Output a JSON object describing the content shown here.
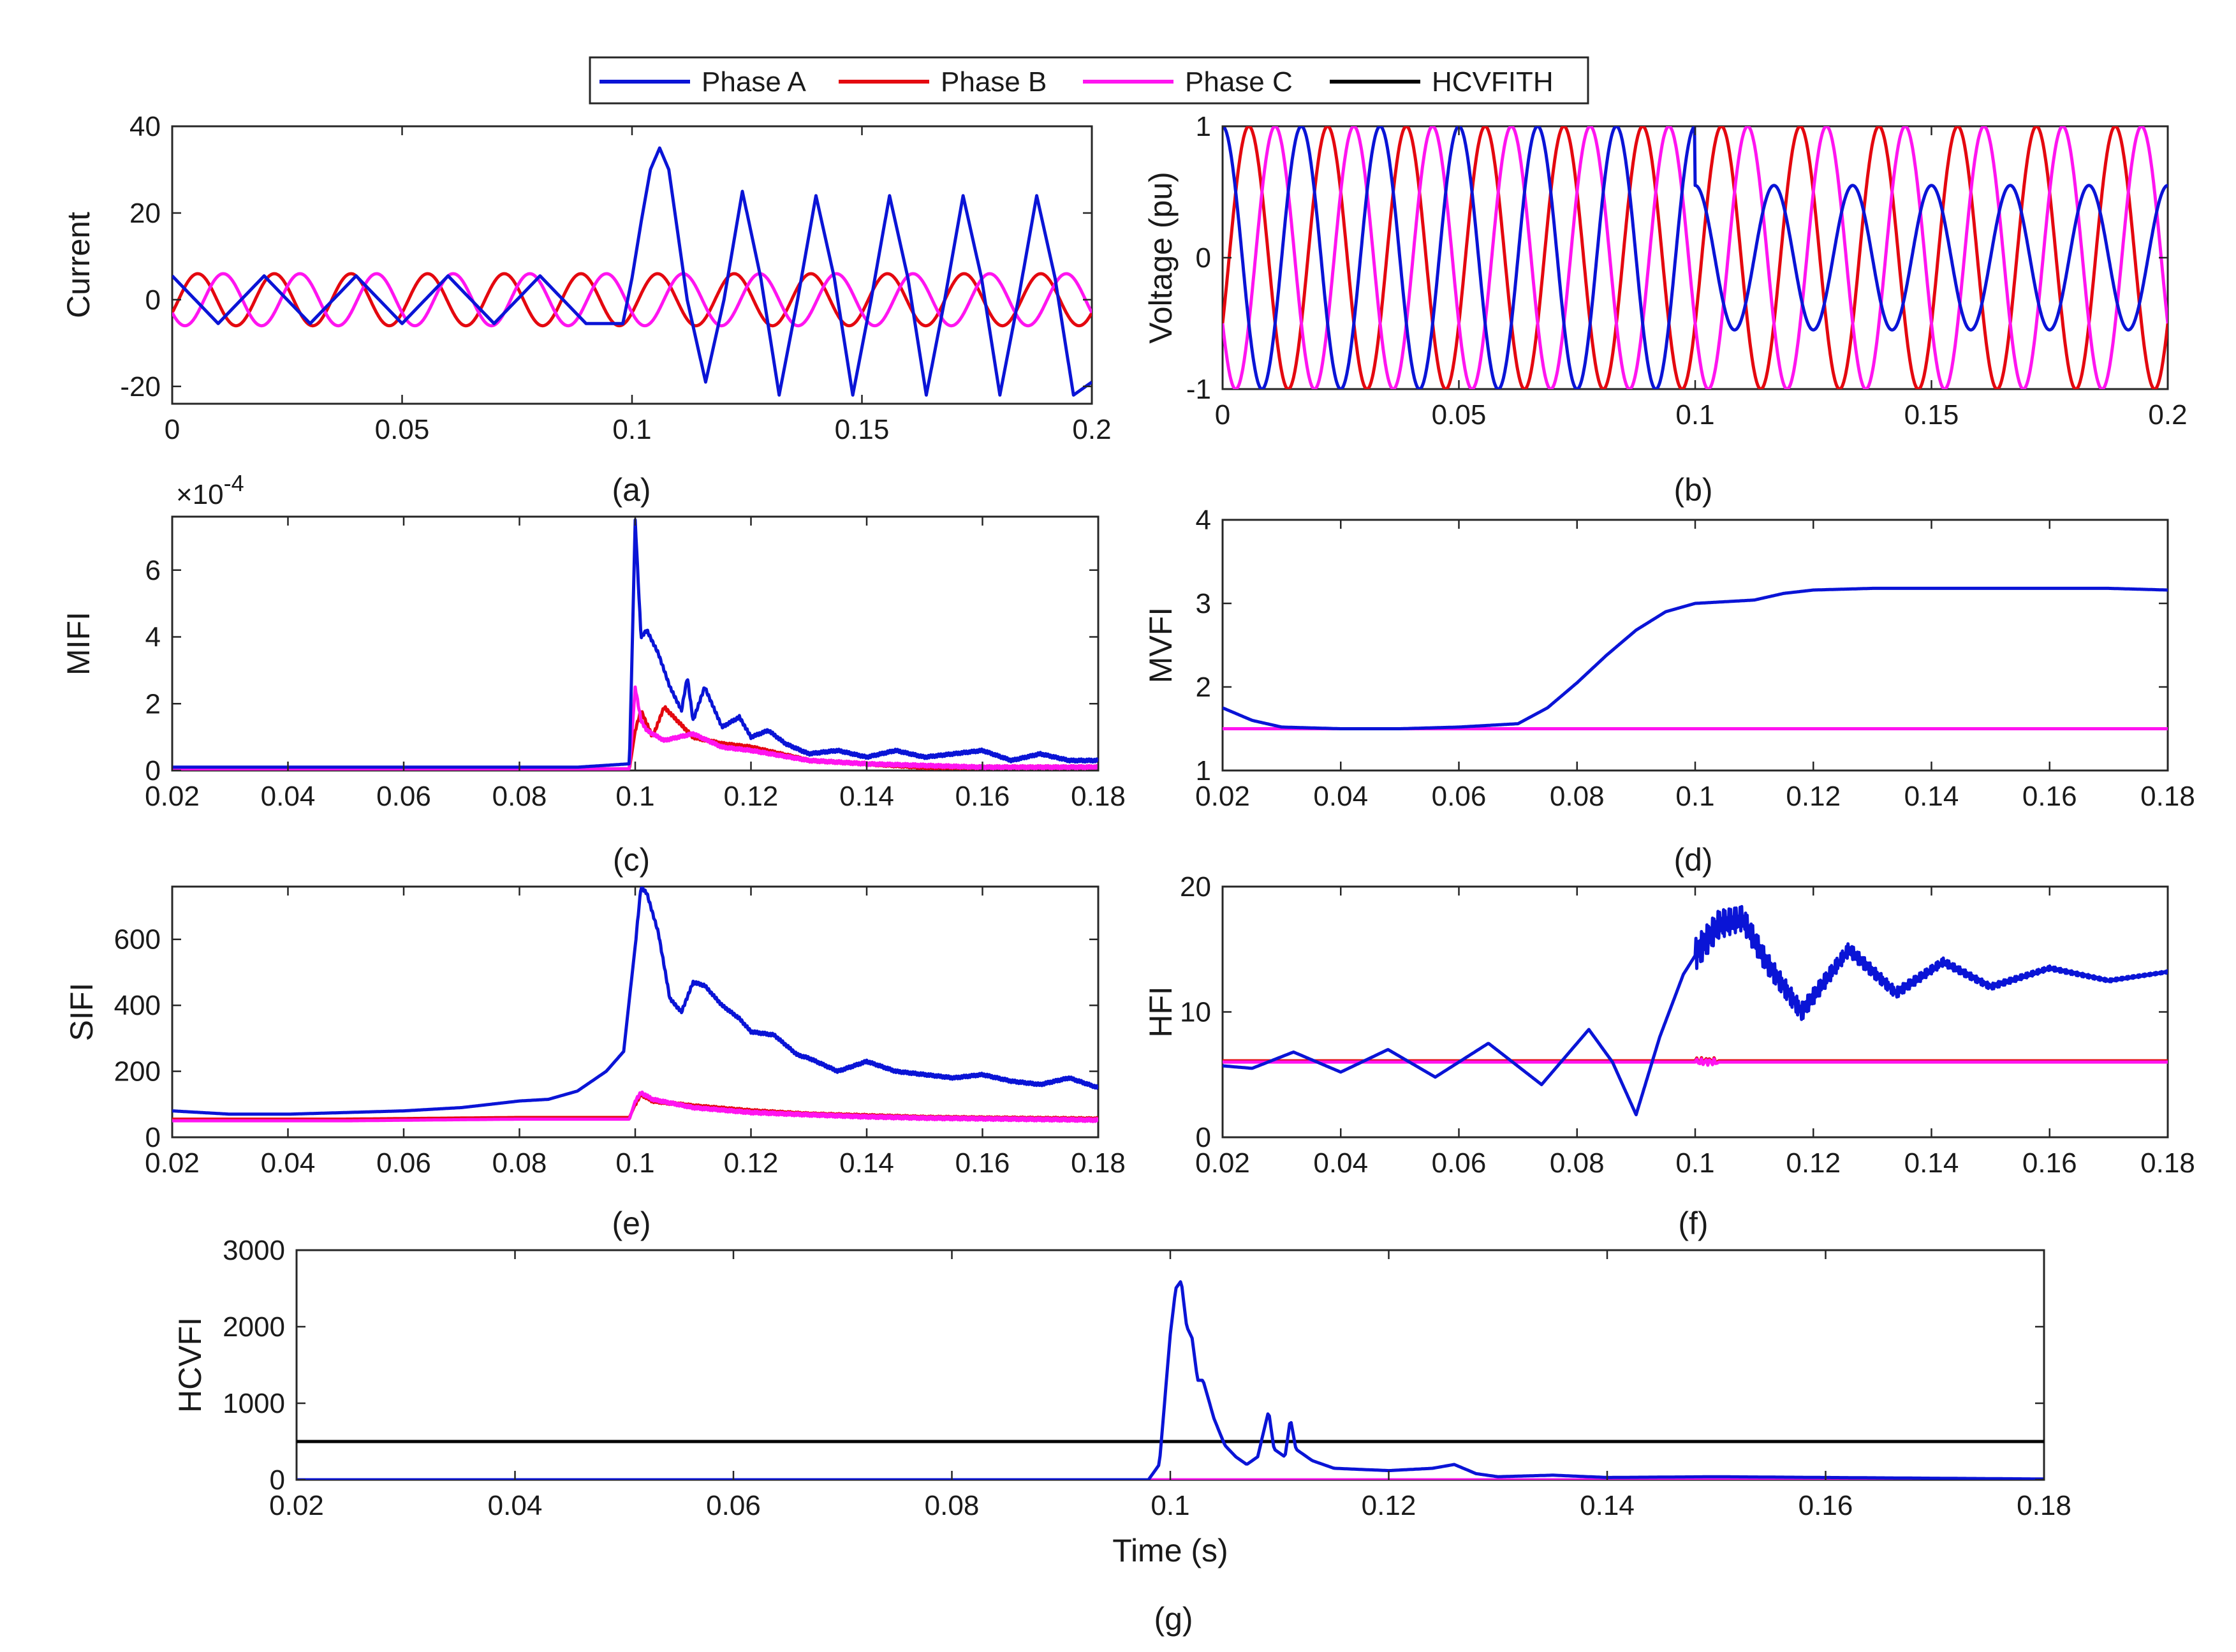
{
  "legend": {
    "entries": [
      {
        "name": "Phase A",
        "color": "#0a14d6"
      },
      {
        "name": "Phase B",
        "color": "#e4080f"
      },
      {
        "name": "Phase C",
        "color": "#ff14f0"
      },
      {
        "name": "HCVFITH",
        "color": "#000000"
      }
    ]
  },
  "chart_data": [
    {
      "id": "a",
      "type": "line",
      "caption": "(a)",
      "xlabel": "",
      "ylabel": "Current",
      "exponent": "",
      "xlim": [
        0,
        0.2
      ],
      "ylim": [
        -24,
        40
      ],
      "xticks": [
        0,
        0.05,
        0.1,
        0.15,
        0.2
      ],
      "xtick_labels": [
        "0",
        "0.05",
        "0.1",
        "0.15",
        "0.2"
      ],
      "yticks": [
        -20,
        0,
        20,
        40
      ],
      "ytick_labels": [
        "-20",
        "0",
        "20",
        "40"
      ],
      "series": [
        {
          "name": "Phase A",
          "x": [
            0,
            0.005,
            0.01,
            0.015,
            0.02,
            0.03,
            0.04,
            0.05,
            0.06,
            0.07,
            0.08,
            0.09,
            0.098,
            0.1,
            0.102,
            0.104,
            0.106,
            0.108,
            0.112,
            0.116,
            0.12,
            0.124,
            0.128,
            0.132,
            0.136,
            0.14,
            0.144,
            0.148,
            0.152,
            0.156,
            0.16,
            0.164,
            0.168,
            0.172,
            0.176,
            0.18,
            0.184,
            0.188,
            0.192,
            0.196,
            0.2
          ],
          "y": [
            5.5,
            0,
            -5.5,
            0,
            5.5,
            -5.5,
            5.5,
            -5.5,
            5.5,
            -5.5,
            5.5,
            -5.5,
            -5.5,
            5,
            18,
            30,
            35,
            30,
            0,
            -19,
            0,
            25,
            5,
            -22,
            0,
            24,
            5,
            -22,
            0,
            24,
            5,
            -22,
            0,
            24,
            5,
            -22,
            0,
            24,
            5,
            -22,
            -19
          ]
        },
        {
          "name": "Phase B",
          "x": [
            0,
            0.2
          ],
          "y": [
            -5.5,
            -5.5
          ],
          "amplitude": 6,
          "frequency_hz": 60,
          "phase_deg": -120
        },
        {
          "name": "Phase C",
          "x": [
            0,
            0.2
          ],
          "y": [
            5.5,
            5.5
          ],
          "amplitude": 6,
          "frequency_hz": 60,
          "phase_deg": 120
        }
      ]
    },
    {
      "id": "b",
      "type": "line",
      "caption": "(b)",
      "xlabel": "",
      "ylabel": "Voltage (pu)",
      "exponent": "",
      "xlim": [
        0,
        0.2
      ],
      "ylim": [
        -1,
        1
      ],
      "xticks": [
        0,
        0.05,
        0.1,
        0.15,
        0.2
      ],
      "xtick_labels": [
        "0",
        "0.05",
        "0.1",
        "0.15",
        "0.2"
      ],
      "yticks": [
        -1,
        0,
        1
      ],
      "ytick_labels": [
        "-1",
        "0",
        "1"
      ],
      "series": [
        {
          "name": "Phase A",
          "amplitude": 1,
          "frequency_hz": 60,
          "phase_deg": 0,
          "x_fault": 0.1,
          "post_fault_amplitude": 0.55
        },
        {
          "name": "Phase B",
          "amplitude": 1,
          "frequency_hz": 60,
          "phase_deg": -120
        },
        {
          "name": "Phase C",
          "amplitude": 1,
          "frequency_hz": 60,
          "phase_deg": 120
        }
      ]
    },
    {
      "id": "c",
      "type": "line",
      "caption": "(c)",
      "xlabel": "",
      "ylabel": "MIFI",
      "exponent": "×10^-4",
      "xlim": [
        0.02,
        0.18
      ],
      "ylim": [
        0,
        7.6
      ],
      "xticks": [
        0.02,
        0.04,
        0.06,
        0.08,
        0.1,
        0.12,
        0.14,
        0.16,
        0.18
      ],
      "xtick_labels": [
        "0.02",
        "0.04",
        "0.06",
        "0.08",
        "0.1",
        "0.12",
        "0.14",
        "0.16",
        "0.18"
      ],
      "yticks": [
        0,
        2,
        4,
        6
      ],
      "ytick_labels": [
        "0",
        "2",
        "4",
        "6"
      ],
      "series": [
        {
          "name": "Phase A",
          "x": [
            0.02,
            0.09,
            0.099,
            0.1,
            0.101,
            0.102,
            0.104,
            0.106,
            0.108,
            0.109,
            0.11,
            0.112,
            0.115,
            0.118,
            0.12,
            0.123,
            0.126,
            0.13,
            0.135,
            0.14,
            0.145,
            0.15,
            0.155,
            0.16,
            0.165,
            0.17,
            0.175,
            0.18
          ],
          "y": [
            0.1,
            0.1,
            0.2,
            7.5,
            4,
            4.2,
            3.5,
            2.5,
            1.8,
            2.8,
            1.5,
            2.5,
            1.3,
            1.6,
            1.0,
            1.2,
            0.8,
            0.5,
            0.6,
            0.4,
            0.6,
            0.4,
            0.5,
            0.6,
            0.3,
            0.5,
            0.3,
            0.3
          ]
        },
        {
          "name": "Phase B",
          "x": [
            0.02,
            0.099,
            0.1,
            0.101,
            0.103,
            0.105,
            0.11,
            0.115,
            0.12,
            0.13,
            0.14,
            0.15,
            0.16,
            0.18
          ],
          "y": [
            0.05,
            0.05,
            1.2,
            1.8,
            1.0,
            1.9,
            1.0,
            0.8,
            0.7,
            0.3,
            0.2,
            0.1,
            0.1,
            0.1
          ]
        },
        {
          "name": "Phase C",
          "x": [
            0.02,
            0.099,
            0.1,
            0.101,
            0.102,
            0.105,
            0.11,
            0.115,
            0.12,
            0.13,
            0.14,
            0.15,
            0.16,
            0.18
          ],
          "y": [
            0.05,
            0.05,
            2.5,
            1.5,
            1.2,
            0.9,
            1.1,
            0.7,
            0.6,
            0.3,
            0.2,
            0.15,
            0.1,
            0.1
          ]
        }
      ]
    },
    {
      "id": "d",
      "type": "line",
      "caption": "(d)",
      "xlabel": "",
      "ylabel": "MVFI",
      "exponent": "",
      "xlim": [
        0.02,
        0.18
      ],
      "ylim": [
        1,
        4
      ],
      "xticks": [
        0.02,
        0.04,
        0.06,
        0.08,
        0.1,
        0.12,
        0.14,
        0.16,
        0.18
      ],
      "xtick_labels": [
        "0.02",
        "0.04",
        "0.06",
        "0.08",
        "0.1",
        "0.12",
        "0.14",
        "0.16",
        "0.18"
      ],
      "yticks": [
        1,
        2,
        3,
        4
      ],
      "ytick_labels": [
        "1",
        "2",
        "3",
        "4"
      ],
      "series": [
        {
          "name": "Phase A",
          "x": [
            0.02,
            0.025,
            0.03,
            0.04,
            0.05,
            0.06,
            0.07,
            0.075,
            0.08,
            0.085,
            0.09,
            0.095,
            0.1,
            0.105,
            0.11,
            0.115,
            0.12,
            0.13,
            0.14,
            0.15,
            0.16,
            0.17,
            0.18
          ],
          "y": [
            1.75,
            1.6,
            1.52,
            1.5,
            1.5,
            1.52,
            1.56,
            1.75,
            2.05,
            2.38,
            2.68,
            2.9,
            3.0,
            3.02,
            3.04,
            3.12,
            3.16,
            3.18,
            3.18,
            3.18,
            3.18,
            3.18,
            3.16
          ]
        },
        {
          "name": "Phase B",
          "x": [
            0.02,
            0.18
          ],
          "y": [
            1.5,
            1.5
          ]
        },
        {
          "name": "Phase C",
          "x": [
            0.02,
            0.18
          ],
          "y": [
            1.5,
            1.5
          ]
        }
      ]
    },
    {
      "id": "e",
      "type": "line",
      "caption": "(e)",
      "xlabel": "",
      "ylabel": "SIFI",
      "exponent": "",
      "xlim": [
        0.02,
        0.18
      ],
      "ylim": [
        0,
        760
      ],
      "xticks": [
        0.02,
        0.04,
        0.06,
        0.08,
        0.1,
        0.12,
        0.14,
        0.16,
        0.18
      ],
      "xtick_labels": [
        "0.02",
        "0.04",
        "0.06",
        "0.08",
        "0.1",
        "0.12",
        "0.14",
        "0.16",
        "0.18"
      ],
      "yticks": [
        0,
        200,
        400,
        600
      ],
      "ytick_labels": [
        "0",
        "200",
        "400",
        "600"
      ],
      "series": [
        {
          "name": "Phase A",
          "x": [
            0.02,
            0.03,
            0.04,
            0.05,
            0.06,
            0.07,
            0.08,
            0.085,
            0.09,
            0.095,
            0.098,
            0.1,
            0.101,
            0.102,
            0.104,
            0.106,
            0.108,
            0.11,
            0.112,
            0.115,
            0.118,
            0.12,
            0.124,
            0.128,
            0.13,
            0.135,
            0.14,
            0.145,
            0.15,
            0.155,
            0.16,
            0.165,
            0.17,
            0.175,
            0.18
          ],
          "y": [
            80,
            70,
            70,
            75,
            80,
            90,
            110,
            115,
            140,
            200,
            260,
            580,
            760,
            740,
            620,
            420,
            380,
            470,
            460,
            400,
            360,
            320,
            310,
            250,
            240,
            200,
            230,
            200,
            190,
            180,
            190,
            170,
            160,
            180,
            150
          ]
        },
        {
          "name": "Phase B",
          "x": [
            0.02,
            0.05,
            0.08,
            0.099,
            0.1,
            0.101,
            0.103,
            0.11,
            0.12,
            0.13,
            0.14,
            0.15,
            0.16,
            0.18
          ],
          "y": [
            55,
            55,
            60,
            60,
            100,
            130,
            110,
            95,
            80,
            70,
            65,
            60,
            58,
            55
          ]
        },
        {
          "name": "Phase C",
          "x": [
            0.02,
            0.05,
            0.08,
            0.099,
            0.1,
            0.101,
            0.103,
            0.11,
            0.12,
            0.13,
            0.14,
            0.15,
            0.16,
            0.18
          ],
          "y": [
            50,
            50,
            55,
            55,
            110,
            135,
            115,
            90,
            75,
            68,
            62,
            58,
            56,
            52
          ]
        }
      ]
    },
    {
      "id": "f",
      "type": "line",
      "caption": "(f)",
      "xlabel": "",
      "ylabel": "HFI",
      "exponent": "",
      "xlim": [
        0.02,
        0.18
      ],
      "ylim": [
        0,
        20
      ],
      "xticks": [
        0.02,
        0.04,
        0.06,
        0.08,
        0.1,
        0.12,
        0.14,
        0.16,
        0.18
      ],
      "xtick_labels": [
        "0.02",
        "0.04",
        "0.06",
        "0.08",
        "0.1",
        "0.12",
        "0.14",
        "0.16",
        "0.18"
      ],
      "yticks": [
        0,
        10,
        20
      ],
      "ytick_labels": [
        "0",
        "10",
        "20"
      ],
      "series": [
        {
          "name": "Phase A",
          "x": [
            0.02,
            0.025,
            0.032,
            0.04,
            0.048,
            0.056,
            0.065,
            0.074,
            0.082,
            0.086,
            0.09,
            0.094,
            0.098,
            0.1,
            0.104,
            0.108,
            0.112,
            0.118,
            0.126,
            0.134,
            0.142,
            0.15,
            0.16,
            0.17,
            0.18
          ],
          "y": [
            5.7,
            5.5,
            6.8,
            5.2,
            7.0,
            4.8,
            7.5,
            4.2,
            8.6,
            6.0,
            1.8,
            8.0,
            13.0,
            14.5,
            17.0,
            17.5,
            14.0,
            10.0,
            15.0,
            11.5,
            14.0,
            12.0,
            13.5,
            12.5,
            13.2
          ]
        },
        {
          "name": "Phase B",
          "x": [
            0.02,
            0.18
          ],
          "y": [
            6.1,
            6.1
          ]
        },
        {
          "name": "Phase C",
          "x": [
            0.02,
            0.18
          ],
          "y": [
            6.0,
            6.0
          ]
        }
      ]
    },
    {
      "id": "g",
      "type": "line",
      "caption": "(g)",
      "xlabel": "Time (s)",
      "ylabel": "HCVFI",
      "exponent": "",
      "xlim": [
        0.02,
        0.18
      ],
      "ylim": [
        0,
        3000
      ],
      "xticks": [
        0.02,
        0.04,
        0.06,
        0.08,
        0.1,
        0.12,
        0.14,
        0.16,
        0.18
      ],
      "xtick_labels": [
        "0.02",
        "0.04",
        "0.06",
        "0.08",
        "0.1",
        "0.12",
        "0.14",
        "0.16",
        "0.18"
      ],
      "yticks": [
        0,
        1000,
        2000,
        3000
      ],
      "ytick_labels": [
        "0",
        "1000",
        "2000",
        "3000"
      ],
      "series": [
        {
          "name": "Phase A",
          "x": [
            0.02,
            0.098,
            0.099,
            0.1,
            0.1005,
            0.101,
            0.1015,
            0.102,
            0.1025,
            0.103,
            0.1035,
            0.104,
            0.105,
            0.106,
            0.107,
            0.108,
            0.109,
            0.1095,
            0.11,
            0.1105,
            0.111,
            0.1115,
            0.112,
            0.113,
            0.115,
            0.12,
            0.124,
            0.126,
            0.128,
            0.13,
            0.135,
            0.14,
            0.15,
            0.16,
            0.17,
            0.18
          ],
          "y": [
            0,
            0,
            200,
            1900,
            2500,
            2600,
            2000,
            1850,
            1300,
            1300,
            1050,
            800,
            450,
            300,
            200,
            300,
            900,
            400,
            350,
            300,
            800,
            400,
            350,
            250,
            150,
            120,
            150,
            200,
            80,
            40,
            60,
            30,
            40,
            30,
            20,
            10
          ]
        },
        {
          "name": "Phase B",
          "x": [
            0.02,
            0.18
          ],
          "y": [
            0,
            0
          ]
        },
        {
          "name": "Phase C",
          "x": [
            0.02,
            0.18
          ],
          "y": [
            0,
            0
          ]
        },
        {
          "name": "HCVFITH",
          "x": [
            0.02,
            0.18
          ],
          "y": [
            500,
            500
          ]
        }
      ]
    }
  ]
}
